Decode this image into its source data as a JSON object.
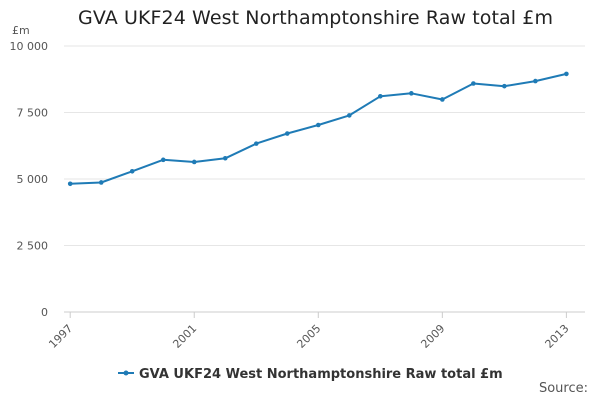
{
  "chart_data": {
    "type": "line",
    "title": "GVA UKF24 West Northamptonshire Raw total £m",
    "ylabel": "£m",
    "xlabel": "",
    "ylim": [
      0,
      10000
    ],
    "y_ticks": [
      0,
      2500,
      5000,
      7500,
      10000
    ],
    "y_tick_labels": [
      "0",
      "2 500",
      "5 000",
      "7 500",
      "10 000"
    ],
    "x_tick_labels": [
      "1997",
      "2001",
      "2005",
      "2009",
      "2013"
    ],
    "x_ticks": [
      1997,
      2001,
      2005,
      2009,
      2013
    ],
    "grid": true,
    "legend_position": "bottom",
    "series": [
      {
        "name": "GVA UKF24 West Northamptonshire Raw total £m",
        "color": "#1f7bb6",
        "x": [
          1997,
          1998,
          1999,
          2000,
          2001,
          2002,
          2003,
          2004,
          2005,
          2006,
          2007,
          2008,
          2009,
          2010,
          2011,
          2012,
          2013
        ],
        "values": [
          4820,
          4870,
          5290,
          5720,
          5640,
          5780,
          6330,
          6710,
          7030,
          7390,
          8110,
          8220,
          7990,
          8590,
          8490,
          8680,
          8950
        ]
      }
    ],
    "source_label": "Source:"
  }
}
